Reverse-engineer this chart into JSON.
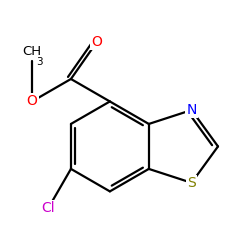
{
  "bg_color": "#ffffff",
  "bond_color": "#000000",
  "bond_width": 1.6,
  "atom_colors": {
    "S": "#808000",
    "N": "#0000ff",
    "O": "#ff0000",
    "Cl": "#cc00cc",
    "C": "#000000"
  },
  "figsize": [
    2.5,
    2.5
  ],
  "dpi": 100
}
